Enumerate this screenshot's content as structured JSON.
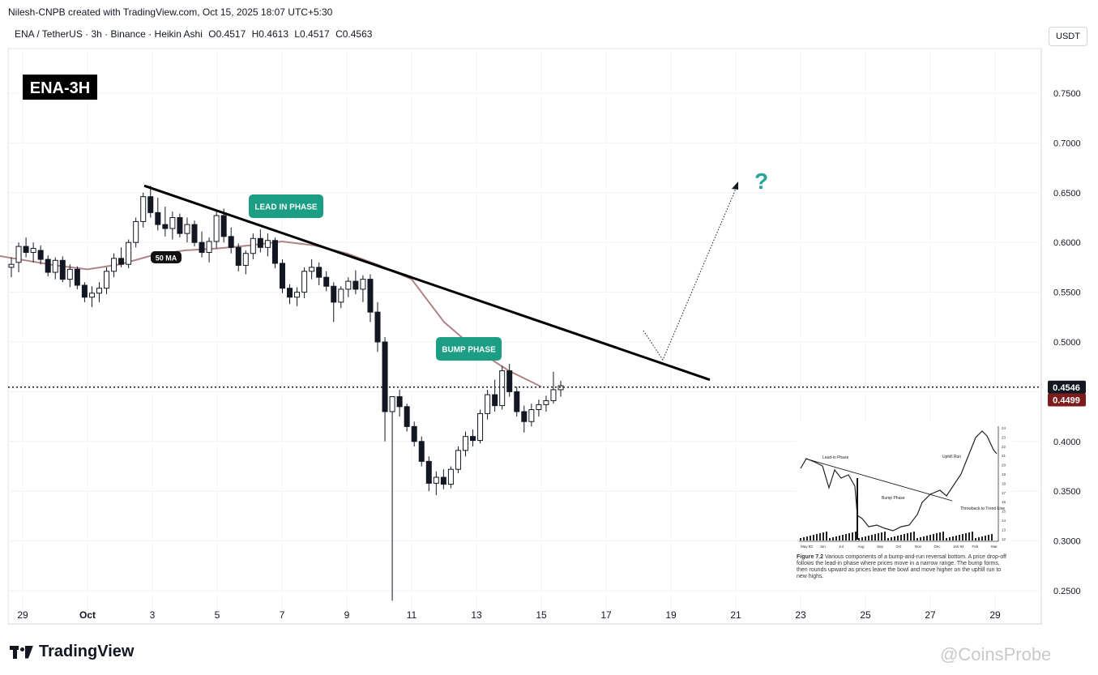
{
  "header": {
    "credit": "Nilesh-CNPB created with TradingView.com, Oct 15, 2025 18:07 UTC+5:30",
    "symbol": "ENA / TetherUS · 3h · Binance · Heikin Ashi",
    "open": "O0.4517",
    "high": "H0.4613",
    "low": "L0.4517",
    "close": "C0.4563",
    "currency": "USDT"
  },
  "chart_data": {
    "type": "candlestick",
    "title": "ENA-3H",
    "yticks": [
      "0.7500",
      "0.7000",
      "0.6500",
      "0.6000",
      "0.5500",
      "0.5000",
      "0.4500",
      "0.4000",
      "0.3500",
      "0.3000",
      "0.2500"
    ],
    "ylim": [
      0.235,
      0.785
    ],
    "xticks": [
      "29",
      "Oct",
      "3",
      "5",
      "7",
      "9",
      "11",
      "13",
      "15",
      "17",
      "19",
      "21",
      "23",
      "25",
      "27",
      "29"
    ],
    "price_labels": {
      "last": "0.4546",
      "ma": "0.4499"
    },
    "colors": {
      "up": "#ffffff",
      "down": "#131722",
      "ma": "#b08484",
      "label": "#1b9e83",
      "ma_badge": "#7c1d1d"
    },
    "annotations": {
      "lead_in": "LEAD IN PHASE",
      "bump": "BUMP PHASE",
      "ma": "50 MA",
      "question": "?"
    },
    "trendline": {
      "from": [
        "Oct 2",
        0.657
      ],
      "to": [
        "Oct 20",
        0.462
      ]
    },
    "candles": [
      [
        "Sep 28",
        0.575,
        0.585,
        0.565,
        0.578
      ],
      [
        "Sep 28",
        0.58,
        0.6,
        0.57,
        0.596
      ],
      [
        "Sep 28",
        0.596,
        0.605,
        0.585,
        0.59
      ],
      [
        "Sep 29",
        0.59,
        0.6,
        0.58,
        0.594
      ],
      [
        "Sep 29",
        0.592,
        0.597,
        0.578,
        0.583
      ],
      [
        "Sep 29",
        0.583,
        0.587,
        0.566,
        0.57
      ],
      [
        "Sep 29",
        0.57,
        0.585,
        0.563,
        0.582
      ],
      [
        "Sep 30",
        0.582,
        0.586,
        0.56,
        0.563
      ],
      [
        "Sep 30",
        0.563,
        0.578,
        0.555,
        0.573
      ],
      [
        "Sep 30",
        0.573,
        0.576,
        0.553,
        0.557
      ],
      [
        "Sep 30",
        0.557,
        0.56,
        0.54,
        0.545
      ],
      [
        "Sep 30",
        0.545,
        0.556,
        0.535,
        0.549
      ],
      [
        "Oct 1",
        0.549,
        0.56,
        0.54,
        0.554
      ],
      [
        "Oct 1",
        0.554,
        0.575,
        0.548,
        0.571
      ],
      [
        "Oct 1",
        0.571,
        0.589,
        0.565,
        0.584
      ],
      [
        "Oct 1",
        0.584,
        0.595,
        0.575,
        0.578
      ],
      [
        "Oct 2",
        0.578,
        0.603,
        0.574,
        0.6
      ],
      [
        "Oct 2",
        0.6,
        0.625,
        0.595,
        0.621
      ],
      [
        "Oct 2",
        0.621,
        0.65,
        0.615,
        0.646
      ],
      [
        "Oct 3",
        0.646,
        0.657,
        0.625,
        0.63
      ],
      [
        "Oct 3",
        0.63,
        0.645,
        0.612,
        0.618
      ],
      [
        "Oct 3",
        0.618,
        0.636,
        0.606,
        0.614
      ],
      [
        "Oct 3",
        0.614,
        0.631,
        0.603,
        0.625
      ],
      [
        "Oct 4",
        0.625,
        0.629,
        0.605,
        0.609
      ],
      [
        "Oct 4",
        0.609,
        0.625,
        0.6,
        0.618
      ],
      [
        "Oct 4",
        0.618,
        0.622,
        0.596,
        0.6
      ],
      [
        "Oct 4",
        0.6,
        0.611,
        0.585,
        0.59
      ],
      [
        "Oct 5",
        0.59,
        0.605,
        0.58,
        0.601
      ],
      [
        "Oct 5",
        0.601,
        0.631,
        0.594,
        0.627
      ],
      [
        "Oct 5",
        0.627,
        0.634,
        0.6,
        0.606
      ],
      [
        "Oct 5",
        0.606,
        0.615,
        0.589,
        0.595
      ],
      [
        "Oct 6",
        0.595,
        0.599,
        0.571,
        0.577
      ],
      [
        "Oct 6",
        0.577,
        0.592,
        0.568,
        0.589
      ],
      [
        "Oct 6",
        0.589,
        0.609,
        0.583,
        0.604
      ],
      [
        "Oct 6",
        0.604,
        0.613,
        0.59,
        0.595
      ],
      [
        "Oct 7",
        0.595,
        0.609,
        0.586,
        0.602
      ],
      [
        "Oct 7",
        0.602,
        0.605,
        0.574,
        0.579
      ],
      [
        "Oct 7",
        0.579,
        0.583,
        0.549,
        0.554
      ],
      [
        "Oct 7",
        0.554,
        0.558,
        0.538,
        0.545
      ],
      [
        "Oct 8",
        0.545,
        0.555,
        0.536,
        0.55
      ],
      [
        "Oct 8",
        0.55,
        0.575,
        0.544,
        0.571
      ],
      [
        "Oct 8",
        0.571,
        0.583,
        0.563,
        0.575
      ],
      [
        "Oct 8",
        0.575,
        0.58,
        0.557,
        0.565
      ],
      [
        "Oct 9",
        0.565,
        0.571,
        0.551,
        0.556
      ],
      [
        "Oct 9",
        0.556,
        0.56,
        0.52,
        0.54
      ],
      [
        "Oct 9",
        0.54,
        0.556,
        0.534,
        0.553
      ],
      [
        "Oct 9",
        0.553,
        0.565,
        0.545,
        0.561
      ],
      [
        "Oct 10",
        0.561,
        0.572,
        0.548,
        0.553
      ],
      [
        "Oct 10",
        0.553,
        0.567,
        0.54,
        0.563
      ],
      [
        "Oct 10",
        0.563,
        0.568,
        0.52,
        0.53
      ],
      [
        "Oct 10",
        0.53,
        0.54,
        0.49,
        0.5
      ],
      [
        "Oct 11",
        0.5,
        0.505,
        0.4,
        0.43
      ],
      [
        "Oct 11",
        0.43,
        0.445,
        0.24,
        0.445
      ],
      [
        "Oct 11",
        0.445,
        0.452,
        0.425,
        0.435
      ],
      [
        "Oct 11",
        0.435,
        0.438,
        0.41,
        0.415
      ],
      [
        "Oct 11",
        0.415,
        0.42,
        0.395,
        0.4
      ],
      [
        "Oct 12",
        0.4,
        0.405,
        0.375,
        0.38
      ],
      [
        "Oct 12",
        0.38,
        0.385,
        0.35,
        0.358
      ],
      [
        "Oct 12",
        0.358,
        0.37,
        0.346,
        0.364
      ],
      [
        "Oct 12",
        0.364,
        0.372,
        0.352,
        0.357
      ],
      [
        "Oct 12",
        0.357,
        0.375,
        0.353,
        0.372
      ],
      [
        "Oct 13",
        0.372,
        0.395,
        0.368,
        0.391
      ],
      [
        "Oct 13",
        0.391,
        0.41,
        0.385,
        0.405
      ],
      [
        "Oct 13",
        0.405,
        0.412,
        0.395,
        0.401
      ],
      [
        "Oct 13",
        0.401,
        0.432,
        0.398,
        0.428
      ],
      [
        "Oct 13",
        0.428,
        0.452,
        0.422,
        0.447
      ],
      [
        "Oct 14",
        0.447,
        0.462,
        0.43,
        0.436
      ],
      [
        "Oct 14",
        0.436,
        0.476,
        0.432,
        0.471
      ],
      [
        "Oct 14",
        0.471,
        0.478,
        0.445,
        0.45
      ],
      [
        "Oct 14",
        0.45,
        0.455,
        0.425,
        0.43
      ],
      [
        "Oct 14",
        0.43,
        0.436,
        0.409,
        0.42
      ],
      [
        "Oct 15",
        0.42,
        0.438,
        0.415,
        0.432
      ],
      [
        "Oct 15",
        0.432,
        0.442,
        0.425,
        0.437
      ],
      [
        "Oct 15",
        0.437,
        0.446,
        0.43,
        0.441
      ],
      [
        "Oct 15",
        0.441,
        0.47,
        0.438,
        0.452
      ],
      [
        "Oct 15",
        0.452,
        0.461,
        0.445,
        0.456
      ]
    ],
    "ma50": [
      [
        "Sep 28",
        0.588
      ],
      [
        "Sep 30",
        0.577
      ],
      [
        "Oct 1",
        0.573
      ],
      [
        "Oct 2",
        0.578
      ],
      [
        "Oct 3",
        0.587
      ],
      [
        "Oct 4",
        0.592
      ],
      [
        "Oct 5",
        0.594
      ],
      [
        "Oct 6",
        0.597
      ],
      [
        "Oct 7",
        0.601
      ],
      [
        "Oct 8",
        0.597
      ],
      [
        "Oct 9",
        0.589
      ],
      [
        "Oct 10",
        0.577
      ],
      [
        "Oct 11",
        0.563
      ],
      [
        "Oct 12",
        0.52
      ],
      [
        "Oct 13",
        0.492
      ],
      [
        "Oct 14",
        0.471
      ],
      [
        "Oct 15",
        0.455
      ]
    ],
    "projection": {
      "path": [
        [
          "Oct 18",
          0.51
        ],
        [
          "Oct 19",
          0.478
        ],
        [
          "Oct 21",
          0.66
        ]
      ]
    }
  },
  "inset": {
    "labels": [
      "Lead-in Phase",
      "Bump Phase",
      "Uphill Run",
      "Throwback to Trend Line"
    ],
    "caption_bold": "Figure 7.2",
    "caption": "Various components of a bump-and-run reversal bottom. A price drop-off follows the lead-in phase where prices move in a narrow range. The bump forms, then rounds upward as prices leave the bowl and move higher on the uphill run to new highs.",
    "x_labels": [
      "May 93",
      "Jun",
      "Jul",
      "Aug",
      "Sep",
      "Oct",
      "Nov",
      "Dec",
      "Jan 94",
      "Feb",
      "Mar"
    ],
    "y_labels": [
      "24",
      "23",
      "22",
      "21",
      "20",
      "19",
      "18",
      "17",
      "16",
      "15",
      "14",
      "13",
      "12"
    ]
  },
  "branding": {
    "logo": "TradingView",
    "watermark": "@CoinsProbe"
  }
}
